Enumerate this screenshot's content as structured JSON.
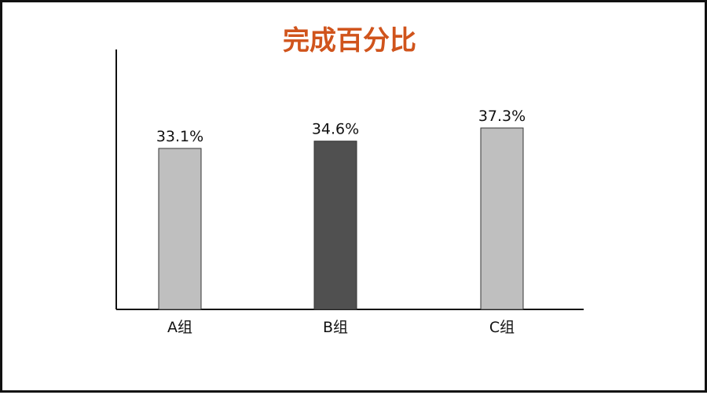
{
  "chart_data": {
    "type": "bar",
    "title": "完成百分比",
    "categories": [
      "A组",
      "B组",
      "C组"
    ],
    "values": [
      33.1,
      34.6,
      37.3
    ],
    "value_labels": [
      "33.1%",
      "34.6%",
      "37.3%"
    ],
    "xlabel": "",
    "ylabel": "",
    "ylim": [
      0,
      40
    ],
    "grid": false,
    "legend": "none",
    "colors": {
      "title": "#d0541c",
      "bars": [
        "#bfbfbf",
        "#505050",
        "#bfbfbf"
      ],
      "bar_stroke": "#333333",
      "axis": "#111111"
    }
  }
}
